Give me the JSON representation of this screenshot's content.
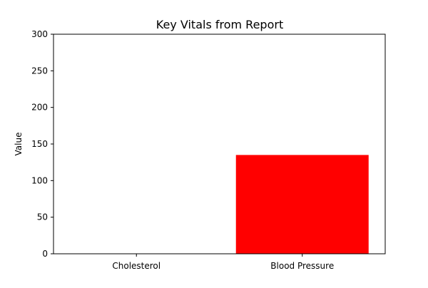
{
  "chart_data": {
    "type": "bar",
    "title": "Key Vitals from Report",
    "xlabel": "",
    "ylabel": "Value",
    "categories": [
      "Cholesterol",
      "Blood Pressure"
    ],
    "values": [
      0,
      135
    ],
    "ylim": [
      0,
      300
    ],
    "yticks": [
      0,
      50,
      100,
      150,
      200,
      250,
      300
    ],
    "bar_color": "#ff0000",
    "grid": false,
    "legend": false
  }
}
